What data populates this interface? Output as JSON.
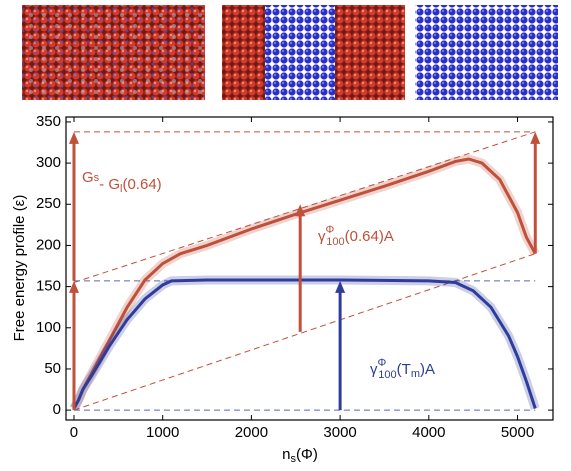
{
  "chart_data": {
    "type": "line",
    "xlabel": {
      "base": "n",
      "sub": "s",
      "text": "(Φ)"
    },
    "ylabel": "Free energy profile (ε)",
    "xlim": [
      -90,
      5400
    ],
    "ylim": [
      -12,
      356
    ],
    "xticks": [
      0,
      1000,
      2000,
      3000,
      4000,
      5000
    ],
    "yticks": [
      0,
      50,
      100,
      150,
      200,
      250,
      300,
      350
    ],
    "series": [
      {
        "color": "#c0503a",
        "x": [
          0,
          50,
          100,
          200,
          400,
          600,
          800,
          1000,
          1200,
          1500,
          2000,
          2500,
          3000,
          3500,
          4000,
          4300,
          4450,
          4600,
          4800,
          5000,
          5100,
          5200
        ],
        "values": [
          2,
          12,
          25,
          45,
          85,
          125,
          158,
          178,
          190,
          200,
          220,
          238,
          255,
          272,
          290,
          302,
          305,
          300,
          280,
          240,
          210,
          190
        ]
      },
      {
        "color": "#2e3d9c",
        "x": [
          0,
          50,
          100,
          200,
          400,
          600,
          800,
          1000,
          1100,
          1500,
          2000,
          3000,
          4000,
          4300,
          4500,
          4700,
          4900,
          5000,
          5100,
          5200
        ],
        "values": [
          2,
          12,
          25,
          42,
          78,
          110,
          135,
          152,
          157,
          158,
          158,
          158,
          157,
          155,
          145,
          125,
          90,
          65,
          35,
          2
        ]
      }
    ],
    "reference_lines": [
      {
        "color": "#c0503a",
        "x": [
          0,
          5200
        ],
        "values": [
          338,
          338
        ]
      },
      {
        "color": "#c0503a",
        "x": [
          0,
          5200
        ],
        "values": [
          155,
          338
        ]
      },
      {
        "color": "#c0503a",
        "x": [
          0,
          5200
        ],
        "values": [
          0,
          190
        ]
      },
      {
        "color": "#5a67b5",
        "x": [
          0,
          5200
        ],
        "values": [
          157,
          157
        ]
      },
      {
        "color": "#5a67b5",
        "x": [
          0,
          5200
        ],
        "values": [
          0,
          0
        ]
      }
    ],
    "arrows": [
      {
        "color": "#c0503a",
        "x": 0,
        "from": 0,
        "to": 157
      },
      {
        "color": "#c0503a",
        "x": 0,
        "from": 157,
        "to": 338
      },
      {
        "color": "#c0503a",
        "x": 5200,
        "from": 190,
        "to": 338
      },
      {
        "color": "#c0503a",
        "x": 2550,
        "from": 95,
        "to": 250
      },
      {
        "color": "#2e3d9c",
        "x": 3000,
        "from": 0,
        "to": 157
      }
    ],
    "annotations": [
      {
        "base": "G",
        "sub": "s",
        "text": "- G",
        "sub2": "l",
        "text2": "(0.64)",
        "color": "#c0503a"
      },
      {
        "base": "γ",
        "sup": "Φ",
        "sub": "100",
        "text": "(0.64)A",
        "color": "#c0503a"
      },
      {
        "base": "γ",
        "sup": "Φ",
        "sub": "100",
        "text": "(T",
        "sub2": "m",
        "text2": ")A",
        "color": "#2e3d9c"
      }
    ]
  }
}
